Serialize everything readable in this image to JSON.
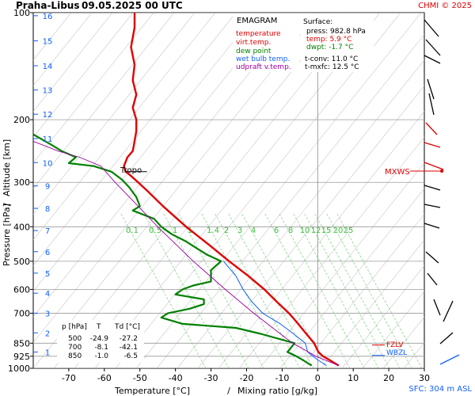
{
  "header": {
    "station": "Praha-Libus",
    "datetime": "09.05.2025 00 UTC",
    "copyright": "CHMI © 2025"
  },
  "legend": {
    "title": "EMAGRAM",
    "items": [
      {
        "label": "temperature",
        "color": "#e00000"
      },
      {
        "label": "virt.temp.",
        "color": "#e00000"
      },
      {
        "label": "dew point",
        "color": "#008000"
      },
      {
        "label": "wet bulb temp.",
        "color": "#1060ff"
      },
      {
        "label": "udpraft v.temp.",
        "color": "#a000a0"
      }
    ]
  },
  "surface": {
    "title": "Surface:",
    "rows": [
      {
        "text": "press: 982.8 hPa",
        "color": "#000000"
      },
      {
        "text": "temp: 5.9 °C",
        "color": "#e00000"
      },
      {
        "text": "dwpt: -1.7 °C",
        "color": "#008000"
      }
    ],
    "conv": [
      {
        "text": "t-conv: 11.0 °C"
      },
      {
        "text": "t-mxfc: 12.5 °C"
      }
    ]
  },
  "table": {
    "header": [
      "p [hPa]",
      "T",
      "Td [°C]"
    ],
    "rows": [
      [
        "500",
        "-24.9",
        "-27.2"
      ],
      [
        "700",
        "-8.1",
        "-42.1"
      ],
      [
        "850",
        "-1.0",
        "-6.5"
      ]
    ]
  },
  "annotations": {
    "tropo": "Tropo",
    "mxws": "MXWS",
    "fzl": "FZLV",
    "wbzl": "WBZL",
    "sfc": "SFC: 304 m ASL"
  },
  "chart_data": {
    "type": "line",
    "xlabel": "Temperature [°C]",
    "xlabel_sep": "/",
    "xlabel2": "Mixing ratio [g/kg]",
    "ylabel": "Pressure [hPa]",
    "ylabel_sep": "/",
    "ylabel2": "Altitude [km]",
    "xlim": [
      -80,
      30
    ],
    "ylim": [
      1000,
      100
    ],
    "y_scale": "log",
    "x_ticks": [
      -70,
      -60,
      -50,
      -40,
      -30,
      -20,
      -10,
      0,
      10,
      20,
      30
    ],
    "y_ticks": [
      100,
      200,
      300,
      400,
      500,
      600,
      700,
      850,
      925,
      1000
    ],
    "km_ticks": [
      1,
      2,
      3,
      4,
      5,
      6,
      7,
      8,
      9,
      10,
      11,
      12,
      13,
      14,
      15,
      16
    ],
    "km_pressures": [
      900,
      795,
      700,
      615,
      540,
      470,
      410,
      355,
      307,
      264,
      226,
      193,
      165,
      141,
      120,
      102
    ],
    "mixing_ratio_labels": [
      "0.1",
      "0.5",
      "1",
      "1",
      "1.4",
      "2",
      "3",
      "4",
      "6",
      "8",
      "10",
      "12",
      "15",
      "20",
      "25"
    ],
    "mixing_ratio_values": [
      0.1,
      0.5,
      1,
      1,
      1.4,
      2,
      3,
      4,
      6,
      8,
      10,
      12,
      15,
      20,
      25
    ],
    "mixing_ratio_label_pressure": 420,
    "tropopause_pressure": 280,
    "fzl_pressure": 860,
    "wbzl_pressure": 920,
    "series": [
      {
        "name": "temperature",
        "color": "#e00000",
        "points": [
          [
            982.8,
            5.9
          ],
          [
            950,
            3.5
          ],
          [
            925,
            1.5
          ],
          [
            900,
            0.2
          ],
          [
            850,
            -1.0
          ],
          [
            800,
            -3.2
          ],
          [
            750,
            -5.5
          ],
          [
            720,
            -7.0
          ],
          [
            700,
            -8.1
          ],
          [
            650,
            -11.5
          ],
          [
            600,
            -15.0
          ],
          [
            550,
            -19.5
          ],
          [
            500,
            -24.9
          ],
          [
            450,
            -30.5
          ],
          [
            400,
            -37.0
          ],
          [
            350,
            -43.5
          ],
          [
            320,
            -47.5
          ],
          [
            300,
            -50.5
          ],
          [
            285,
            -53.0
          ],
          [
            280,
            -54.0
          ],
          [
            270,
            -54.5
          ],
          [
            255,
            -53.5
          ],
          [
            245,
            -52.0
          ],
          [
            230,
            -51.5
          ],
          [
            215,
            -51.0
          ],
          [
            200,
            -51.0
          ],
          [
            185,
            -52.0
          ],
          [
            170,
            -51.0
          ],
          [
            155,
            -52.0
          ],
          [
            140,
            -51.5
          ],
          [
            125,
            -52.5
          ],
          [
            110,
            -51.5
          ],
          [
            100,
            -51.5
          ]
        ]
      },
      {
        "name": "dew point",
        "color": "#008000",
        "points": [
          [
            982.8,
            -1.7
          ],
          [
            950,
            -4.0
          ],
          [
            925,
            -6.0
          ],
          [
            900,
            -8.5
          ],
          [
            850,
            -6.5
          ],
          [
            800,
            -16.0
          ],
          [
            770,
            -23.0
          ],
          [
            750,
            -38.0
          ],
          [
            720,
            -44.0
          ],
          [
            700,
            -42.1
          ],
          [
            680,
            -36.0
          ],
          [
            660,
            -32.0
          ],
          [
            640,
            -32.0
          ],
          [
            620,
            -40.0
          ],
          [
            600,
            -38.0
          ],
          [
            585,
            -35.0
          ],
          [
            570,
            -30.0
          ],
          [
            550,
            -30.0
          ],
          [
            530,
            -30.0
          ],
          [
            500,
            -27.2
          ],
          [
            480,
            -31.0
          ],
          [
            460,
            -34.0
          ],
          [
            440,
            -37.0
          ],
          [
            420,
            -41.0
          ],
          [
            400,
            -44.0
          ],
          [
            380,
            -46.0
          ],
          [
            360,
            -52.0
          ],
          [
            350,
            -50.0
          ],
          [
            330,
            -51.0
          ],
          [
            310,
            -53.0
          ],
          [
            295,
            -55.0
          ],
          [
            280,
            -58.0
          ],
          [
            270,
            -63.0
          ],
          [
            265,
            -70.0
          ],
          [
            255,
            -68.0
          ],
          [
            245,
            -72.0
          ],
          [
            235,
            -75.0
          ],
          [
            220,
            -80.0
          ]
        ]
      },
      {
        "name": "wet bulb temp.",
        "color": "#1060ff",
        "points": [
          [
            982.8,
            2.5
          ],
          [
            950,
            0.2
          ],
          [
            925,
            -1.3
          ],
          [
            900,
            -2.8
          ],
          [
            850,
            -3.5
          ],
          [
            800,
            -6.8
          ],
          [
            750,
            -10.5
          ],
          [
            700,
            -15.5
          ],
          [
            650,
            -18.5
          ],
          [
            600,
            -21.0
          ],
          [
            550,
            -23.0
          ],
          [
            500,
            -26.5
          ]
        ]
      },
      {
        "name": "udpraft v.temp.",
        "color": "#a000a0",
        "points": [
          [
            982.8,
            5.9
          ],
          [
            925,
            -0.5
          ],
          [
            850,
            -7.0
          ],
          [
            800,
            -10.5
          ],
          [
            700,
            -18.0
          ],
          [
            600,
            -26.0
          ],
          [
            500,
            -35.0
          ],
          [
            400,
            -45.0
          ],
          [
            350,
            -50.5
          ],
          [
            300,
            -57.0
          ],
          [
            270,
            -61.0
          ],
          [
            255,
            -67.0
          ],
          [
            245,
            -73.0
          ],
          [
            230,
            -80.0
          ]
        ]
      }
    ]
  }
}
